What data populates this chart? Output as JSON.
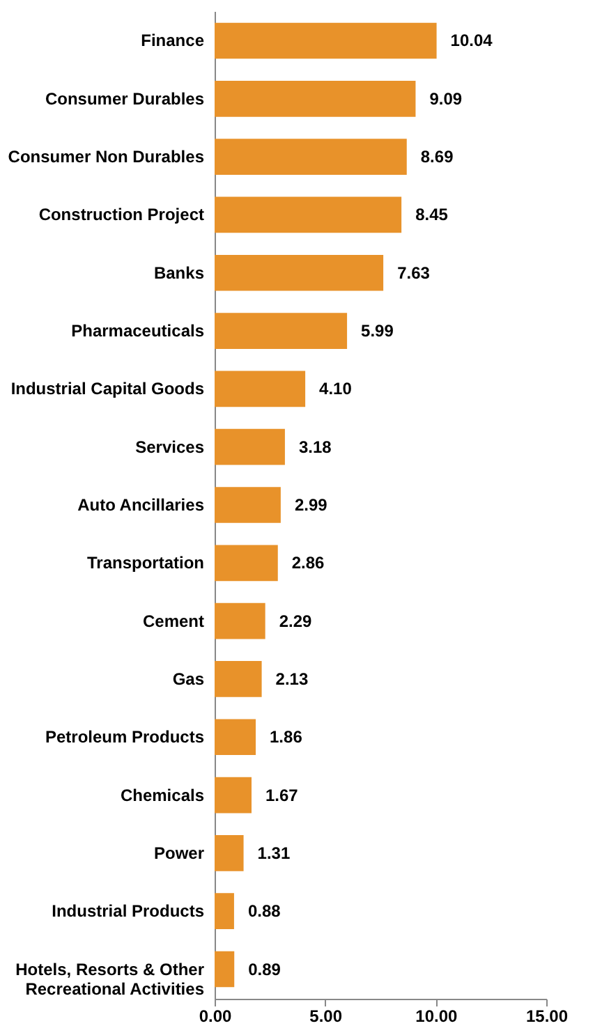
{
  "chart_data": {
    "type": "bar",
    "orientation": "horizontal",
    "categories": [
      "Finance",
      "Consumer Durables",
      "Consumer Non Durables",
      "Construction Project",
      "Banks",
      "Pharmaceuticals",
      "Industrial Capital Goods",
      "Services",
      "Auto Ancillaries",
      "Transportation",
      "Cement",
      "Gas",
      "Petroleum Products",
      "Chemicals",
      "Power",
      "Industrial Products",
      "Hotels, Resorts & Other Recreational Activities"
    ],
    "values": [
      10.04,
      9.09,
      8.69,
      8.45,
      7.63,
      5.99,
      4.1,
      3.18,
      2.99,
      2.86,
      2.29,
      2.13,
      1.86,
      1.67,
      1.31,
      0.88,
      0.89
    ],
    "value_labels": [
      "10.04",
      "9.09",
      "8.69",
      "8.45",
      "7.63",
      "5.99",
      "4.10",
      "3.18",
      "2.99",
      "2.86",
      "2.29",
      "2.13",
      "1.86",
      "1.67",
      "1.31",
      "0.88",
      "0.89"
    ],
    "color": "#e8922a",
    "xlim": [
      0,
      15
    ],
    "xticks": [
      {
        "value": 0,
        "label": "0.00"
      },
      {
        "value": 5,
        "label": "5.00"
      },
      {
        "value": 10,
        "label": "10.00"
      },
      {
        "value": 15,
        "label": "15.00"
      }
    ],
    "grid": false
  }
}
